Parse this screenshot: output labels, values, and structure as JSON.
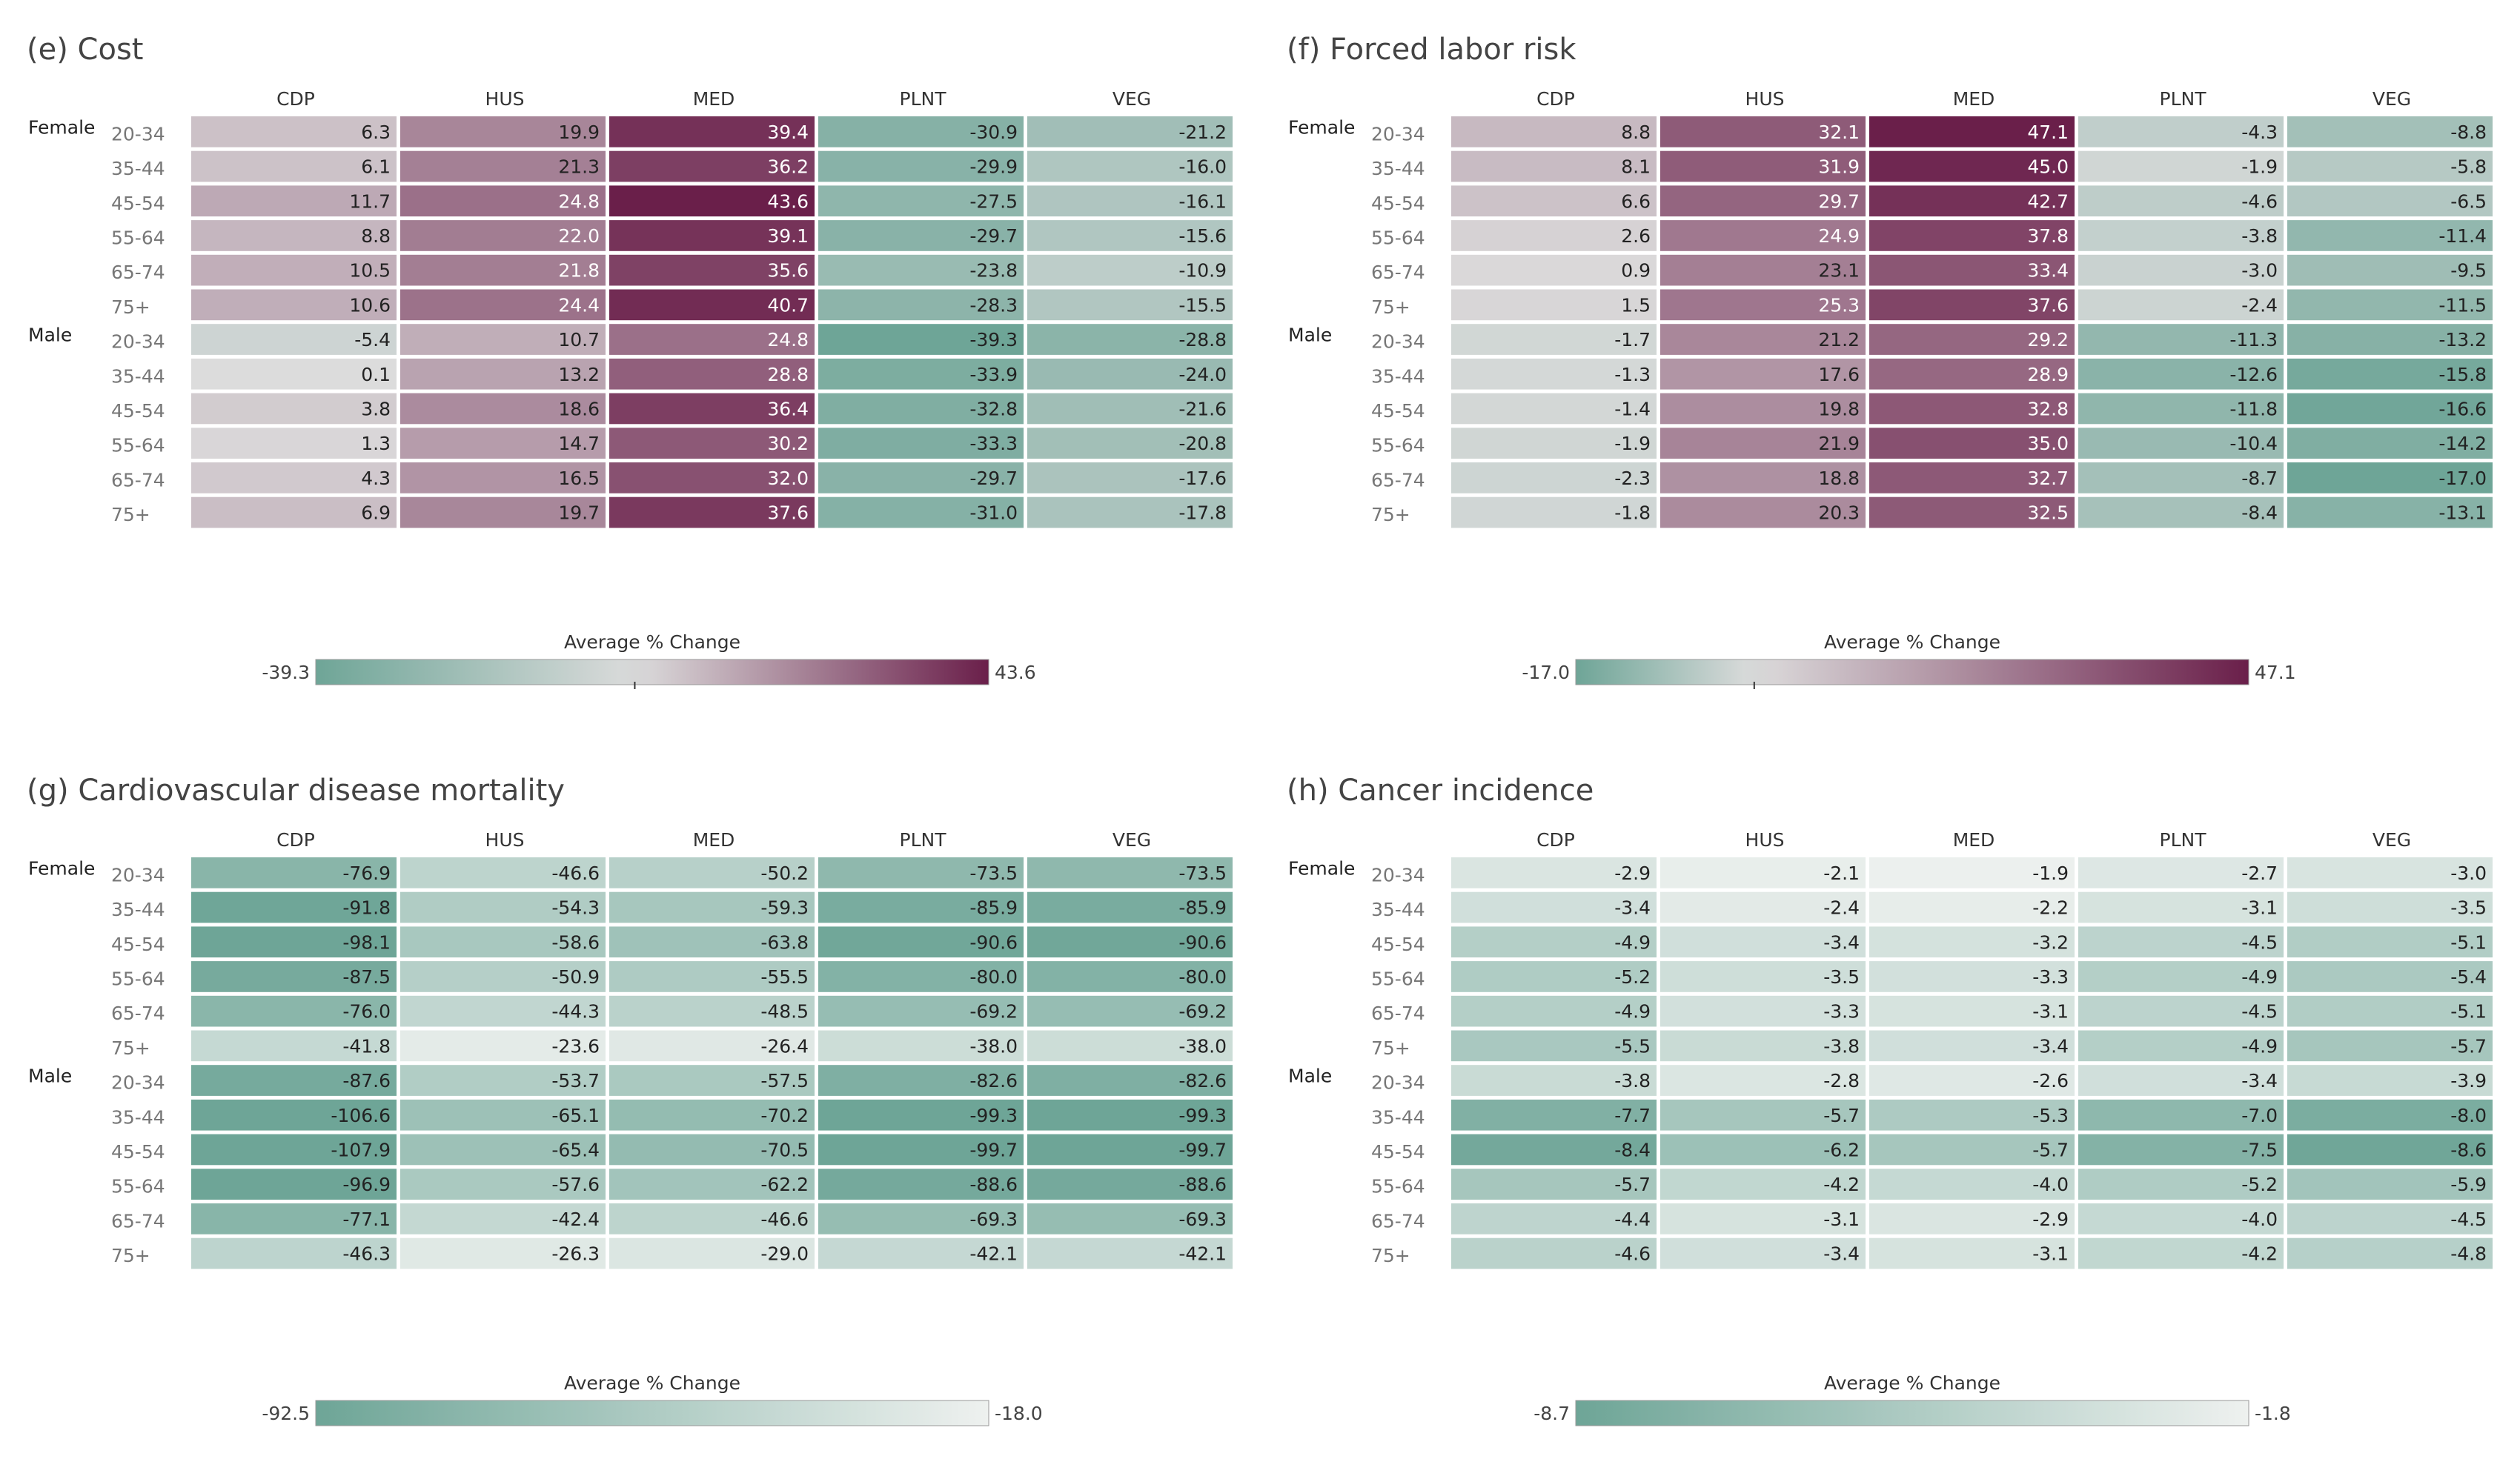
{
  "chart_data": [
    {
      "type": "heatmap",
      "title": "(e) Cost",
      "columns": [
        "CDP",
        "HUS",
        "MED",
        "PLNT",
        "VEG"
      ],
      "groups": [
        {
          "name": "Female",
          "rows": [
            {
              "label": "20-34",
              "values": [
                6.3,
                19.9,
                39.4,
                -30.9,
                -21.2
              ]
            },
            {
              "label": "35-44",
              "values": [
                6.1,
                21.3,
                36.2,
                -29.9,
                -16.0
              ]
            },
            {
              "label": "45-54",
              "values": [
                11.7,
                24.8,
                43.6,
                -27.5,
                -16.1
              ]
            },
            {
              "label": "55-64",
              "values": [
                8.8,
                22.0,
                39.1,
                -29.7,
                -15.6
              ]
            },
            {
              "label": "65-74",
              "values": [
                10.5,
                21.8,
                35.6,
                -23.8,
                -10.9
              ]
            },
            {
              "label": "75+",
              "values": [
                10.6,
                24.4,
                40.7,
                -28.3,
                -15.5
              ]
            }
          ]
        },
        {
          "name": "Male",
          "rows": [
            {
              "label": "20-34",
              "values": [
                -5.4,
                10.7,
                24.8,
                -39.3,
                -28.8
              ]
            },
            {
              "label": "35-44",
              "values": [
                0.1,
                13.2,
                28.8,
                -33.9,
                -24.0
              ]
            },
            {
              "label": "45-54",
              "values": [
                3.8,
                18.6,
                36.4,
                -32.8,
                -21.6
              ]
            },
            {
              "label": "55-64",
              "values": [
                1.3,
                14.7,
                30.2,
                -33.3,
                -20.8
              ]
            },
            {
              "label": "65-74",
              "values": [
                4.3,
                16.5,
                32.0,
                -29.7,
                -17.6
              ]
            },
            {
              "label": "75+",
              "values": [
                6.9,
                19.7,
                37.6,
                -31.0,
                -17.8
              ]
            }
          ]
        }
      ],
      "legend": {
        "title": "Average % Change",
        "min": -39.3,
        "max": 43.6,
        "min_label": "-39.3",
        "max_label": "43.6",
        "diverging": true
      }
    },
    {
      "type": "heatmap",
      "title": "(f) Forced labor risk",
      "columns": [
        "CDP",
        "HUS",
        "MED",
        "PLNT",
        "VEG"
      ],
      "groups": [
        {
          "name": "Female",
          "rows": [
            {
              "label": "20-34",
              "values": [
                8.8,
                32.1,
                47.1,
                -4.3,
                -8.8
              ]
            },
            {
              "label": "35-44",
              "values": [
                8.1,
                31.9,
                45.0,
                -1.9,
                -5.8
              ]
            },
            {
              "label": "45-54",
              "values": [
                6.6,
                29.7,
                42.7,
                -4.6,
                -6.5
              ]
            },
            {
              "label": "55-64",
              "values": [
                2.6,
                24.9,
                37.8,
                -3.8,
                -11.4
              ]
            },
            {
              "label": "65-74",
              "values": [
                0.9,
                23.1,
                33.4,
                -3.0,
                -9.5
              ]
            },
            {
              "label": "75+",
              "values": [
                1.5,
                25.3,
                37.6,
                -2.4,
                -11.5
              ]
            }
          ]
        },
        {
          "name": "Male",
          "rows": [
            {
              "label": "20-34",
              "values": [
                -1.7,
                21.2,
                29.2,
                -11.3,
                -13.2
              ]
            },
            {
              "label": "35-44",
              "values": [
                -1.3,
                17.6,
                28.9,
                -12.6,
                -15.8
              ]
            },
            {
              "label": "45-54",
              "values": [
                -1.4,
                19.8,
                32.8,
                -11.8,
                -16.6
              ]
            },
            {
              "label": "55-64",
              "values": [
                -1.9,
                21.9,
                35.0,
                -10.4,
                -14.2
              ]
            },
            {
              "label": "65-74",
              "values": [
                -2.3,
                18.8,
                32.7,
                -8.7,
                -17.0
              ]
            },
            {
              "label": "75+",
              "values": [
                -1.8,
                20.3,
                32.5,
                -8.4,
                -13.1
              ]
            }
          ]
        }
      ],
      "legend": {
        "title": "Average % Change",
        "min": -17.0,
        "max": 47.1,
        "min_label": "-17.0",
        "max_label": "47.1",
        "diverging": true
      }
    },
    {
      "type": "heatmap",
      "title": "(g) Cardiovascular disease mortality",
      "columns": [
        "CDP",
        "HUS",
        "MED",
        "PLNT",
        "VEG"
      ],
      "groups": [
        {
          "name": "Female",
          "rows": [
            {
              "label": "20-34",
              "values": [
                -76.9,
                -46.6,
                -50.2,
                -73.5,
                -73.5
              ]
            },
            {
              "label": "35-44",
              "values": [
                -91.8,
                -54.3,
                -59.3,
                -85.9,
                -85.9
              ]
            },
            {
              "label": "45-54",
              "values": [
                -98.1,
                -58.6,
                -63.8,
                -90.6,
                -90.6
              ]
            },
            {
              "label": "55-64",
              "values": [
                -87.5,
                -50.9,
                -55.5,
                -80.0,
                -80.0
              ]
            },
            {
              "label": "65-74",
              "values": [
                -76.0,
                -44.3,
                -48.5,
                -69.2,
                -69.2
              ]
            },
            {
              "label": "75+",
              "values": [
                -41.8,
                -23.6,
                -26.4,
                -38.0,
                -38.0
              ]
            }
          ]
        },
        {
          "name": "Male",
          "rows": [
            {
              "label": "20-34",
              "values": [
                -87.6,
                -53.7,
                -57.5,
                -82.6,
                -82.6
              ]
            },
            {
              "label": "35-44",
              "values": [
                -106.6,
                -65.1,
                -70.2,
                -99.3,
                -99.3
              ]
            },
            {
              "label": "45-54",
              "values": [
                -107.9,
                -65.4,
                -70.5,
                -99.7,
                -99.7
              ]
            },
            {
              "label": "55-64",
              "values": [
                -96.9,
                -57.6,
                -62.2,
                -88.6,
                -88.6
              ]
            },
            {
              "label": "65-74",
              "values": [
                -77.1,
                -42.4,
                -46.6,
                -69.3,
                -69.3
              ]
            },
            {
              "label": "75+",
              "values": [
                -46.3,
                -26.3,
                -29.0,
                -42.1,
                -42.1
              ]
            }
          ]
        }
      ],
      "legend": {
        "title": "Average % Change",
        "min": -92.5,
        "max": -18.0,
        "min_label": "-92.5",
        "max_label": "-18.0",
        "diverging": false
      }
    },
    {
      "type": "heatmap",
      "title": "(h) Cancer incidence",
      "columns": [
        "CDP",
        "HUS",
        "MED",
        "PLNT",
        "VEG"
      ],
      "groups": [
        {
          "name": "Female",
          "rows": [
            {
              "label": "20-34",
              "values": [
                -2.9,
                -2.1,
                -1.9,
                -2.7,
                -3.0
              ]
            },
            {
              "label": "35-44",
              "values": [
                -3.4,
                -2.4,
                -2.2,
                -3.1,
                -3.5
              ]
            },
            {
              "label": "45-54",
              "values": [
                -4.9,
                -3.4,
                -3.2,
                -4.5,
                -5.1
              ]
            },
            {
              "label": "55-64",
              "values": [
                -5.2,
                -3.5,
                -3.3,
                -4.9,
                -5.4
              ]
            },
            {
              "label": "65-74",
              "values": [
                -4.9,
                -3.3,
                -3.1,
                -4.5,
                -5.1
              ]
            },
            {
              "label": "75+",
              "values": [
                -5.5,
                -3.8,
                -3.4,
                -4.9,
                -5.7
              ]
            }
          ]
        },
        {
          "name": "Male",
          "rows": [
            {
              "label": "20-34",
              "values": [
                -3.8,
                -2.8,
                -2.6,
                -3.4,
                -3.9
              ]
            },
            {
              "label": "35-44",
              "values": [
                -7.7,
                -5.7,
                -5.3,
                -7.0,
                -8.0
              ]
            },
            {
              "label": "45-54",
              "values": [
                -8.4,
                -6.2,
                -5.7,
                -7.5,
                -8.6
              ]
            },
            {
              "label": "55-64",
              "values": [
                -5.7,
                -4.2,
                -4.0,
                -5.2,
                -5.9
              ]
            },
            {
              "label": "65-74",
              "values": [
                -4.4,
                -3.1,
                -2.9,
                -4.0,
                -4.5
              ]
            },
            {
              "label": "75+",
              "values": [
                -4.6,
                -3.4,
                -3.1,
                -4.2,
                -4.8
              ]
            }
          ]
        }
      ],
      "legend": {
        "title": "Average % Change",
        "min": -8.7,
        "max": -1.8,
        "min_label": "-8.7",
        "max_label": "-1.8",
        "diverging": false
      }
    }
  ],
  "colors": {
    "teal": "#6ea597",
    "neutral": "#dcdcdc",
    "light_end": "#eef1ef",
    "plum": "#6a1f4a",
    "text_dark": "#222222",
    "text_light": "#ffffff"
  }
}
